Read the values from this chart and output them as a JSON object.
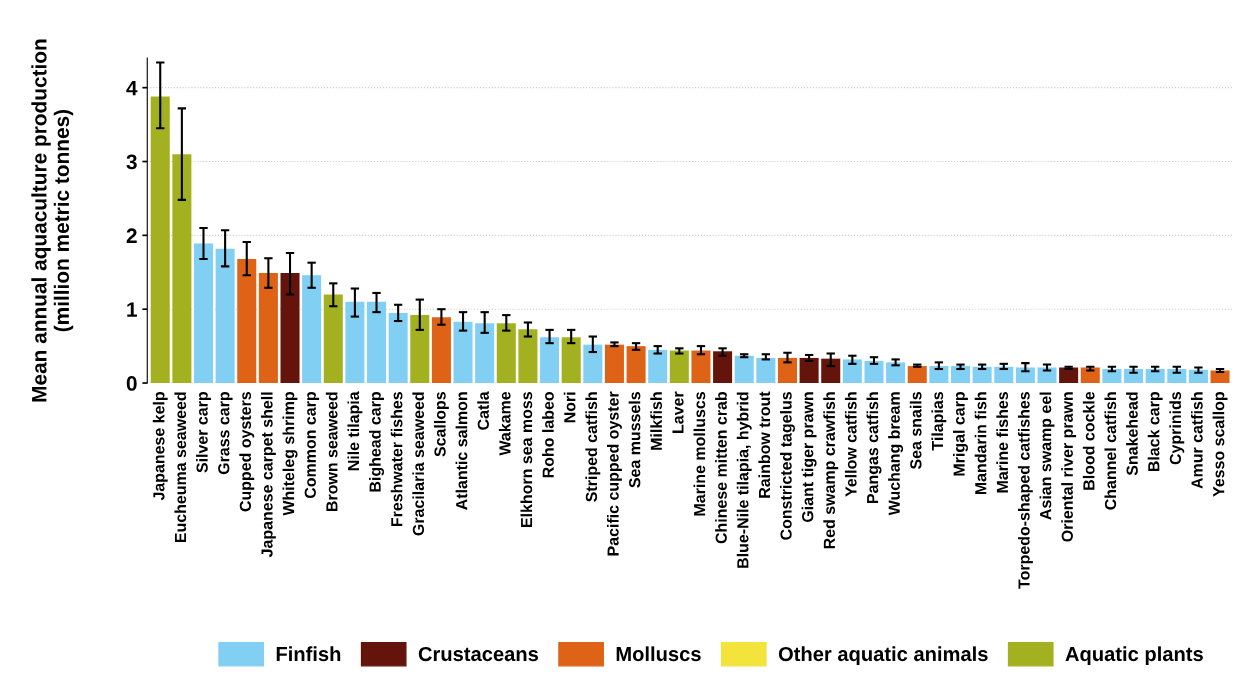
{
  "chart_data": {
    "type": "bar",
    "ylabel": "Mean annual aquaculture production\n(million metric tonnes)",
    "categories": [
      "Japanese kelp",
      "Eucheuma seaweed",
      "Silver carp",
      "Grass carp",
      "Cupped oysters",
      "Japanese carpet shell",
      "Whiteleg shrimp",
      "Common carp",
      "Brown seaweed",
      "Nile tilapia",
      "Bighead carp",
      "Freshwater fishes",
      "Gracilaria seaweed",
      "Scallops",
      "Atlantic salmon",
      "Catla",
      "Wakame",
      "Elkhorn sea moss",
      "Roho labeo",
      "Nori",
      "Striped catfish",
      "Pacific cupped oyster",
      "Sea mussels",
      "Milkfish",
      "Laver",
      "Marine molluscs",
      "Chinese mitten crab",
      "Blue-Nile tilapia, hybrid",
      "Rainbow trout",
      "Constricted tagelus",
      "Giant tiger prawn",
      "Red swamp crawfish",
      "Yellow catfish",
      "Pangas catfish",
      "Wuchang bream",
      "Sea snails",
      "Tilapias",
      "Mrigal carp",
      "Mandarin fish",
      "Marine fishes",
      "Torpedo-shaped catfishes",
      "Asian swamp eel",
      "Oriental river prawn",
      "Blood cockle",
      "Channel catfish",
      "Snakehead",
      "Black carp",
      "Cyprinids",
      "Amur catfish",
      "Yesso scallop"
    ],
    "series": [
      {
        "name": "Finfish",
        "color": "#82cff4",
        "values": [
          null,
          null,
          1.89,
          1.82,
          null,
          null,
          null,
          1.46,
          null,
          1.1,
          1.1,
          0.95,
          null,
          null,
          0.83,
          0.81,
          null,
          null,
          0.62,
          null,
          0.52,
          null,
          null,
          0.45,
          null,
          null,
          null,
          0.37,
          0.34,
          null,
          null,
          null,
          0.32,
          0.3,
          0.28,
          null,
          0.23,
          0.23,
          0.22,
          0.22,
          0.21,
          0.21,
          null,
          null,
          0.19,
          0.19,
          0.19,
          0.19,
          0.18,
          null
        ],
        "errors": [
          null,
          null,
          [
            1.68,
            2.1
          ],
          [
            1.58,
            2.07
          ],
          null,
          null,
          null,
          [
            1.29,
            1.63
          ],
          null,
          [
            0.9,
            1.28
          ],
          [
            0.96,
            1.22
          ],
          [
            0.84,
            1.06
          ],
          null,
          null,
          [
            0.71,
            0.96
          ],
          [
            0.68,
            0.96
          ],
          null,
          null,
          [
            0.54,
            0.72
          ],
          null,
          [
            0.42,
            0.63
          ],
          null,
          null,
          [
            0.4,
            0.5
          ],
          null,
          null,
          null,
          [
            0.35,
            0.39
          ],
          [
            0.32,
            0.39
          ],
          null,
          null,
          null,
          [
            0.26,
            0.37
          ],
          [
            0.26,
            0.35
          ],
          [
            0.24,
            0.32
          ],
          null,
          [
            0.19,
            0.28
          ],
          [
            0.19,
            0.25
          ],
          [
            0.19,
            0.25
          ],
          [
            0.19,
            0.26
          ],
          [
            0.16,
            0.27
          ],
          [
            0.17,
            0.25
          ],
          null,
          null,
          [
            0.16,
            0.22
          ],
          [
            0.14,
            0.22
          ],
          [
            0.16,
            0.22
          ],
          [
            0.14,
            0.22
          ],
          [
            0.14,
            0.21
          ],
          null
        ]
      },
      {
        "name": "Crustaceans",
        "color": "#65140c",
        "values": [
          null,
          null,
          null,
          null,
          null,
          null,
          1.49,
          null,
          null,
          null,
          null,
          null,
          null,
          null,
          null,
          null,
          null,
          null,
          null,
          null,
          null,
          null,
          null,
          null,
          null,
          null,
          0.43,
          null,
          null,
          null,
          0.34,
          0.33,
          null,
          null,
          null,
          null,
          null,
          null,
          null,
          null,
          null,
          null,
          0.21,
          null,
          null,
          null,
          null,
          null,
          null,
          null
        ],
        "errors": [
          null,
          null,
          null,
          null,
          null,
          null,
          [
            1.2,
            1.76
          ],
          null,
          null,
          null,
          null,
          null,
          null,
          null,
          null,
          null,
          null,
          null,
          null,
          null,
          null,
          null,
          null,
          null,
          null,
          null,
          [
            0.37,
            0.47
          ],
          null,
          null,
          null,
          [
            0.3,
            0.38
          ],
          [
            0.23,
            0.4
          ],
          null,
          null,
          null,
          null,
          null,
          null,
          null,
          null,
          null,
          null,
          [
            0.19,
            0.22
          ],
          null,
          null,
          null,
          null,
          null,
          null,
          null
        ]
      },
      {
        "name": "Molluscs",
        "color": "#de6316",
        "values": [
          null,
          null,
          null,
          null,
          1.68,
          1.49,
          null,
          null,
          null,
          null,
          null,
          null,
          null,
          0.89,
          null,
          null,
          null,
          null,
          null,
          null,
          null,
          0.52,
          0.5,
          null,
          null,
          0.44,
          null,
          null,
          null,
          0.34,
          null,
          null,
          null,
          null,
          null,
          0.23,
          null,
          null,
          null,
          null,
          null,
          null,
          null,
          0.21,
          null,
          null,
          null,
          null,
          null,
          0.17
        ],
        "errors": [
          null,
          null,
          null,
          null,
          [
            1.46,
            1.91
          ],
          [
            1.29,
            1.69
          ],
          null,
          null,
          null,
          null,
          null,
          null,
          null,
          [
            0.79,
            1.0
          ],
          null,
          null,
          null,
          null,
          null,
          null,
          null,
          [
            0.5,
            0.55
          ],
          [
            0.45,
            0.54
          ],
          null,
          null,
          [
            0.39,
            0.5
          ],
          null,
          null,
          null,
          [
            0.28,
            0.41
          ],
          null,
          null,
          null,
          null,
          null,
          [
            0.22,
            0.25
          ],
          null,
          null,
          null,
          null,
          null,
          null,
          null,
          [
            0.17,
            0.22
          ],
          null,
          null,
          null,
          null,
          null,
          [
            0.15,
            0.19
          ]
        ]
      },
      {
        "name": "Other aquatic animals",
        "color": "#f2e43a",
        "values": [
          null,
          null,
          null,
          null,
          null,
          null,
          null,
          null,
          null,
          null,
          null,
          null,
          null,
          null,
          null,
          null,
          null,
          null,
          null,
          null,
          null,
          null,
          null,
          null,
          null,
          null,
          null,
          null,
          null,
          null,
          null,
          null,
          null,
          null,
          null,
          null,
          null,
          null,
          null,
          null,
          null,
          null,
          null,
          null,
          null,
          null,
          null,
          null,
          null,
          null
        ]
      },
      {
        "name": "Aquatic plants",
        "color": "#a3b121",
        "values": [
          3.88,
          3.1,
          null,
          null,
          null,
          null,
          null,
          null,
          1.2,
          null,
          null,
          null,
          0.92,
          null,
          null,
          null,
          0.81,
          0.73,
          null,
          0.62,
          null,
          null,
          null,
          null,
          0.44,
          null,
          null,
          null,
          null,
          null,
          null,
          null,
          null,
          null,
          null,
          null,
          null,
          null,
          null,
          null,
          null,
          null,
          null,
          null,
          null,
          null,
          null,
          null,
          null,
          null
        ],
        "errors": [
          [
            3.45,
            4.34
          ],
          [
            2.48,
            3.72
          ],
          null,
          null,
          null,
          null,
          null,
          null,
          [
            1.04,
            1.35
          ],
          null,
          null,
          null,
          [
            0.72,
            1.13
          ],
          null,
          null,
          null,
          [
            0.71,
            0.92
          ],
          [
            0.63,
            0.82
          ],
          null,
          [
            0.54,
            0.72
          ],
          null,
          null,
          null,
          null,
          [
            0.4,
            0.47
          ],
          null,
          null,
          null,
          null,
          null,
          null,
          null,
          null,
          null,
          null,
          null,
          null,
          null,
          null,
          null,
          null,
          null,
          null,
          null,
          null,
          null,
          null,
          null,
          null,
          null
        ]
      }
    ],
    "ylim": [
      0,
      4.4
    ],
    "yticks": [
      0,
      1,
      2,
      3,
      4
    ],
    "grid": "y",
    "legend": "bottom"
  }
}
